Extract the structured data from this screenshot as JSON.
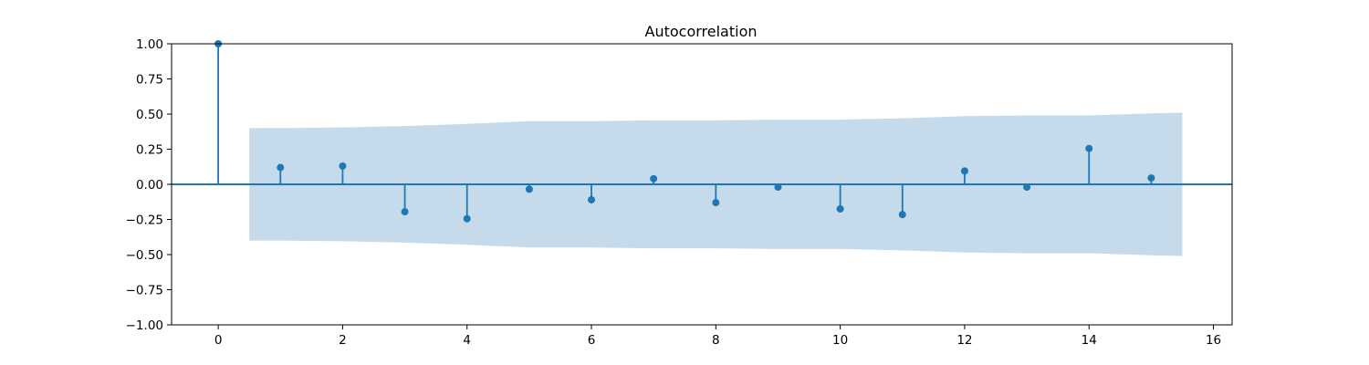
{
  "chart_data": {
    "type": "stem",
    "title": "Autocorrelation",
    "xlabel": "",
    "ylabel": "",
    "xlim": [
      -0.75,
      16.3
    ],
    "ylim": [
      -1.0,
      1.0
    ],
    "x_ticks": [
      0,
      2,
      4,
      6,
      8,
      10,
      12,
      14,
      16
    ],
    "y_ticks": [
      -1.0,
      -0.75,
      -0.5,
      -0.25,
      0.0,
      0.25,
      0.5,
      0.75,
      1.0
    ],
    "x_tick_labels": [
      "0",
      "2",
      "4",
      "6",
      "8",
      "10",
      "12",
      "14",
      "16"
    ],
    "y_tick_labels": [
      "−1.00",
      "−0.75",
      "−0.50",
      "−0.25",
      "0.00",
      "0.25",
      "0.50",
      "0.75",
      "1.00"
    ],
    "grid": false,
    "series": [
      {
        "lags": [
          0,
          1,
          2,
          3,
          4,
          5,
          6,
          7,
          8,
          9,
          10,
          11,
          12,
          13,
          14,
          15
        ],
        "values": [
          1.0,
          0.12,
          0.13,
          -0.195,
          -0.245,
          -0.035,
          -0.11,
          0.04,
          -0.13,
          -0.02,
          -0.175,
          -0.215,
          0.095,
          -0.02,
          0.255,
          0.045
        ]
      }
    ],
    "confidence_band": {
      "x": [
        0.5,
        1,
        2,
        3,
        4,
        5,
        6,
        7,
        8,
        9,
        10,
        11,
        12,
        13,
        14,
        15,
        15.5
      ],
      "upper": [
        0.4,
        0.4,
        0.405,
        0.415,
        0.43,
        0.45,
        0.45,
        0.455,
        0.455,
        0.46,
        0.46,
        0.47,
        0.485,
        0.49,
        0.49,
        0.505,
        0.51
      ]
    },
    "colors": {
      "stem": "#1f77b4",
      "band": "#c5dbeb",
      "axis": "#000000"
    }
  }
}
